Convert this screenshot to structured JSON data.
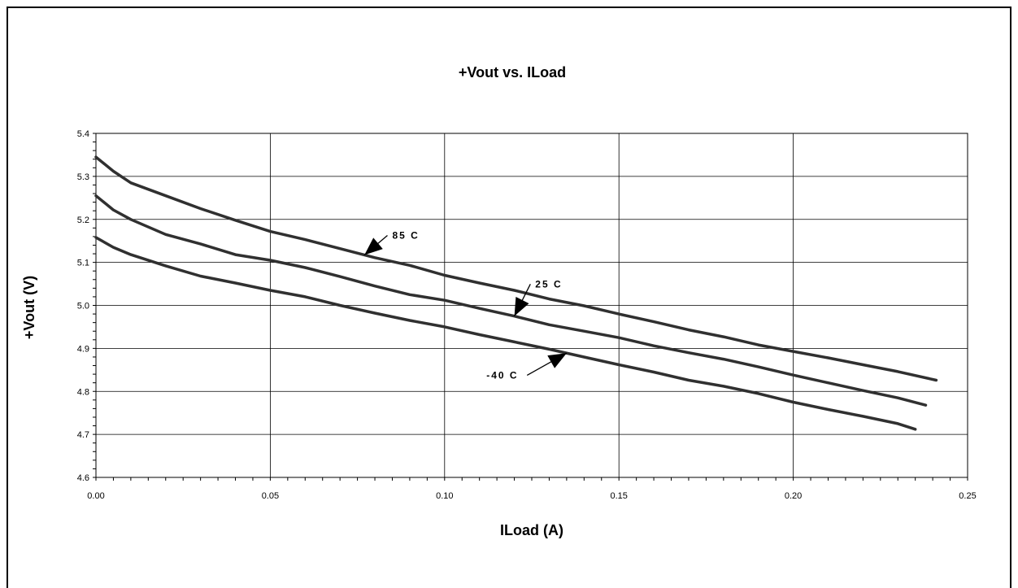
{
  "chart_data": {
    "type": "line",
    "title": "+Vout vs. ILoad",
    "xlabel": "ILoad (A)",
    "ylabel": "+Vout (V)",
    "xlim": [
      0,
      0.25
    ],
    "ylim": [
      4.6,
      5.4
    ],
    "grid": true,
    "legend": "none",
    "x_ticks": [
      "0.00",
      "0.05",
      "0.10",
      "0.15",
      "0.20",
      "0.25"
    ],
    "y_ticks": [
      "4.6",
      "4.7",
      "4.8",
      "4.9",
      "5.0",
      "5.1",
      "5.2",
      "5.3",
      "5.4"
    ],
    "series": [
      {
        "name": "85 C",
        "x": [
          0,
          0.005,
          0.01,
          0.02,
          0.03,
          0.04,
          0.05,
          0.06,
          0.07,
          0.08,
          0.09,
          0.1,
          0.11,
          0.12,
          0.13,
          0.14,
          0.15,
          0.16,
          0.17,
          0.18,
          0.19,
          0.2,
          0.21,
          0.22,
          0.23,
          0.241
        ],
        "values": [
          5.345,
          5.312,
          5.285,
          5.255,
          5.225,
          5.198,
          5.172,
          5.153,
          5.132,
          5.111,
          5.093,
          5.07,
          5.052,
          5.035,
          5.015,
          4.999,
          4.98,
          4.962,
          4.943,
          4.927,
          4.908,
          4.893,
          4.878,
          4.862,
          4.846,
          4.826
        ]
      },
      {
        "name": "25 C",
        "x": [
          0,
          0.005,
          0.01,
          0.02,
          0.03,
          0.04,
          0.05,
          0.06,
          0.07,
          0.08,
          0.09,
          0.1,
          0.11,
          0.12,
          0.13,
          0.14,
          0.15,
          0.16,
          0.17,
          0.18,
          0.19,
          0.2,
          0.21,
          0.22,
          0.23,
          0.238
        ],
        "values": [
          5.255,
          5.222,
          5.2,
          5.165,
          5.143,
          5.118,
          5.105,
          5.088,
          5.067,
          5.045,
          5.025,
          5.012,
          4.993,
          4.975,
          4.955,
          4.94,
          4.925,
          4.906,
          4.89,
          4.875,
          4.857,
          4.838,
          4.82,
          4.802,
          4.785,
          4.768
        ]
      },
      {
        "name": "-40 C",
        "x": [
          0,
          0.005,
          0.01,
          0.02,
          0.03,
          0.04,
          0.05,
          0.06,
          0.07,
          0.08,
          0.09,
          0.1,
          0.11,
          0.12,
          0.13,
          0.14,
          0.15,
          0.16,
          0.17,
          0.18,
          0.19,
          0.2,
          0.21,
          0.22,
          0.23,
          0.235
        ],
        "values": [
          5.158,
          5.135,
          5.118,
          5.092,
          5.068,
          5.052,
          5.035,
          5.02,
          5.0,
          4.982,
          4.965,
          4.95,
          4.932,
          4.915,
          4.898,
          4.88,
          4.862,
          4.845,
          4.826,
          4.812,
          4.795,
          4.775,
          4.758,
          4.742,
          4.725,
          4.712
        ]
      }
    ],
    "annotations": [
      {
        "text": "85 C",
        "series": "85 C",
        "x": 0.077,
        "tx": 0.085,
        "ty": 5.155
      },
      {
        "text": "25 C",
        "series": "25 C",
        "x": 0.12,
        "tx": 0.126,
        "ty": 5.042
      },
      {
        "text": "-40 C",
        "series": "-40 C",
        "x": 0.135,
        "tx": 0.112,
        "ty": 4.83
      }
    ]
  },
  "colors": {
    "line": "#303030",
    "grid": "#000000",
    "border": "#000000"
  }
}
